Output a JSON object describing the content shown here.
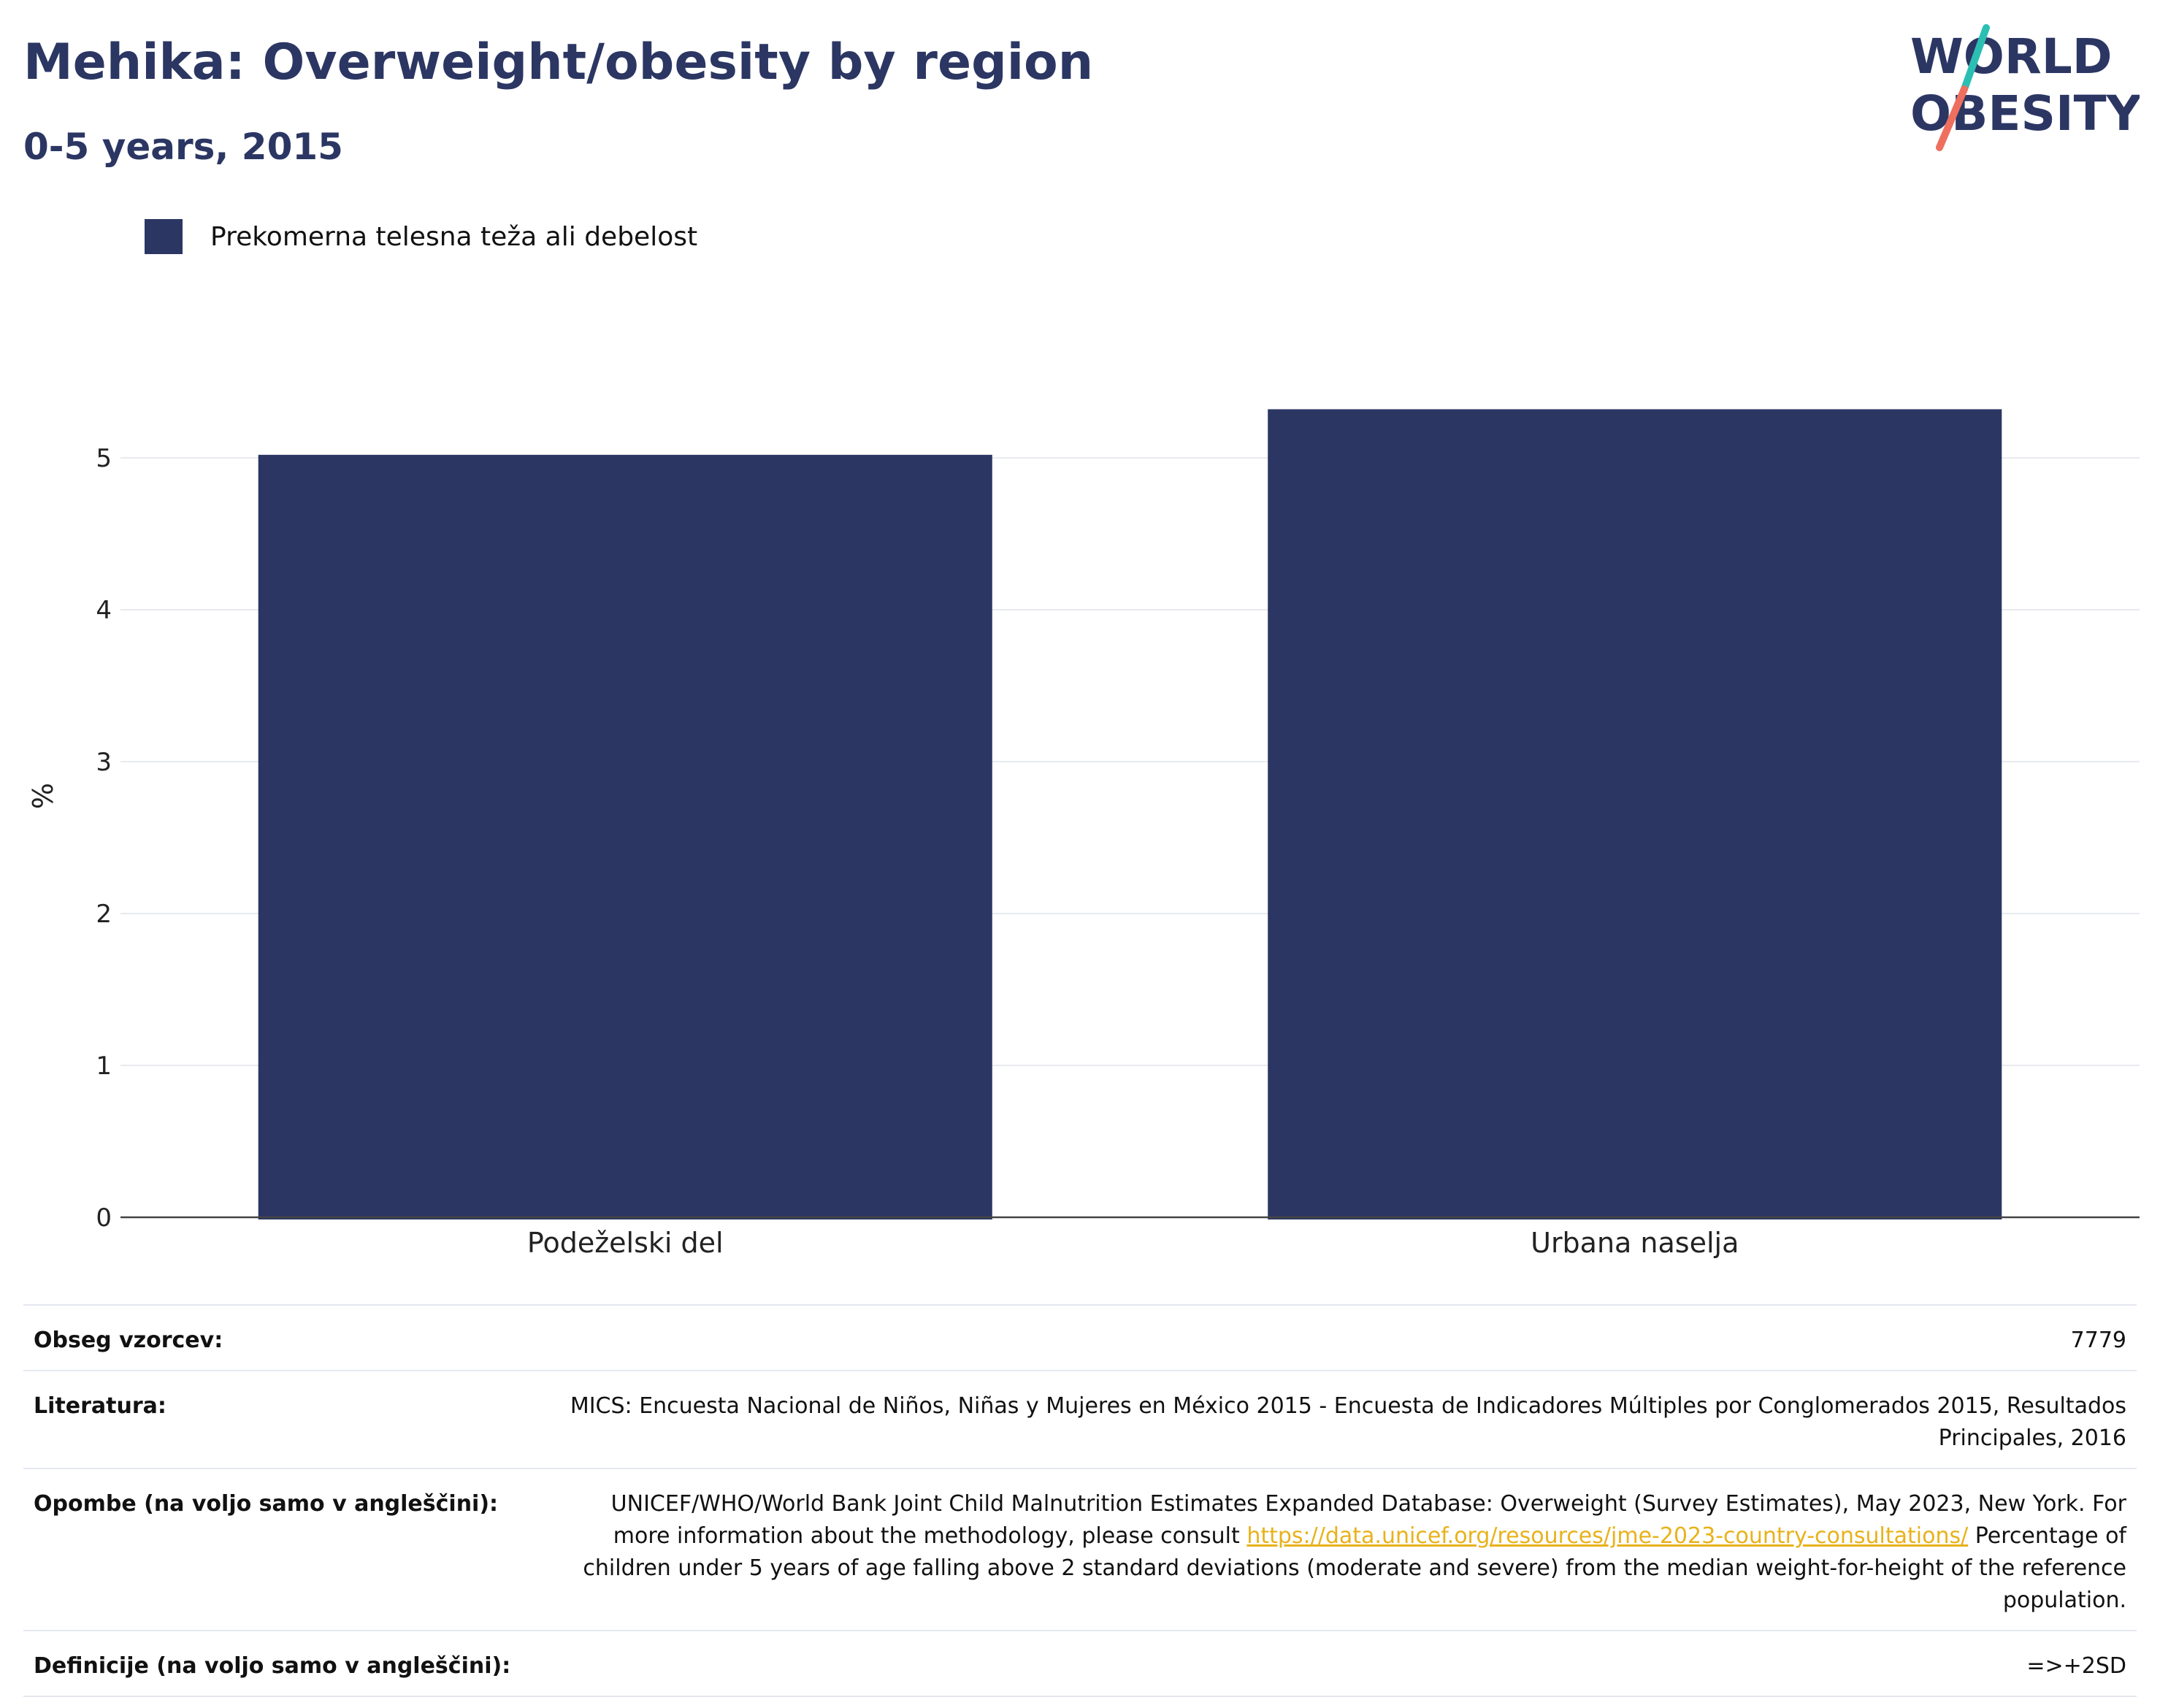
{
  "title": "Mehika: Overweight/obesity by region",
  "subtitle": "0-5 years, 2015",
  "logo": {
    "line1": "WORLD",
    "line2": "OBESITY"
  },
  "colors": {
    "bar": "#2b3663",
    "title": "#2b3663",
    "logo_slash_teal": "#2bbfb3",
    "logo_slash_coral": "#ef6f5e",
    "link": "#e8b21a"
  },
  "chart_data": {
    "type": "bar",
    "categories": [
      "Podeželski del",
      "Urbana naselja"
    ],
    "series": [
      {
        "name": "Prekomerna telesna teža ali debelost",
        "values": [
          5.02,
          5.32
        ]
      }
    ],
    "ylabel": "%",
    "xlabel": "",
    "ylim": [
      0,
      5.75
    ],
    "yticks": [
      "0",
      "1",
      "2",
      "3",
      "4",
      "5"
    ],
    "grid": true,
    "legend": "top-left"
  },
  "info": {
    "sample_label": "Obseg vzorcev:",
    "sample_value": "7779",
    "lit_label": "Literatura:",
    "lit_value": "MICS: Encuesta Nacional de Niños, Niñas y Mujeres en México 2015 - Encuesta de Indicadores Múltiples por Conglomerados 2015, Resultados Principales, 2016",
    "notes_label": "Opombe (na voljo samo v angleščini):",
    "notes_pre": "UNICEF/WHO/World Bank Joint Child Malnutrition Estimates Expanded Database: Overweight (Survey Estimates), May 2023, New York. For more information about the methodology, please consult ",
    "notes_link": "https://data.unicef.org/resources/jme-2023-country-consultations/",
    "notes_post": " Percentage of children under 5 years of age falling above 2 standard deviations (moderate and severe) from the median weight-for-height of the reference population.",
    "def_label": "Definicije (na voljo samo v angleščini):",
    "def_value": "=>+2SD"
  }
}
